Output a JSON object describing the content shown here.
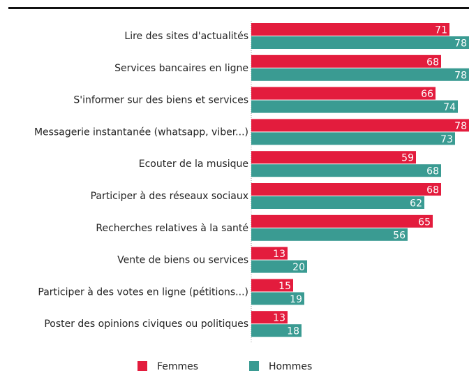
{
  "chart_data": {
    "type": "bar",
    "orientation": "horizontal",
    "categories": [
      "Lire des sites d'actualités",
      "Services bancaires en ligne",
      "S'informer sur des biens et services",
      "Messagerie instantanée (whatsapp, viber...)",
      "Ecouter de la musique",
      "Participer à des réseaux sociaux",
      "Recherches relatives à la santé",
      "Vente de biens ou services",
      "Participer à des votes en ligne (pétitions...)",
      "Poster des opinions civiques ou politiques"
    ],
    "series": [
      {
        "name": "Femmes",
        "color": "#e31c3d",
        "values": [
          71,
          68,
          66,
          78,
          59,
          68,
          65,
          13,
          15,
          13
        ]
      },
      {
        "name": "Hommes",
        "color": "#3a9b92",
        "values": [
          78,
          78,
          74,
          73,
          68,
          62,
          56,
          20,
          19,
          18
        ]
      }
    ],
    "xlim": [
      0,
      80
    ],
    "legend": "bottom"
  }
}
